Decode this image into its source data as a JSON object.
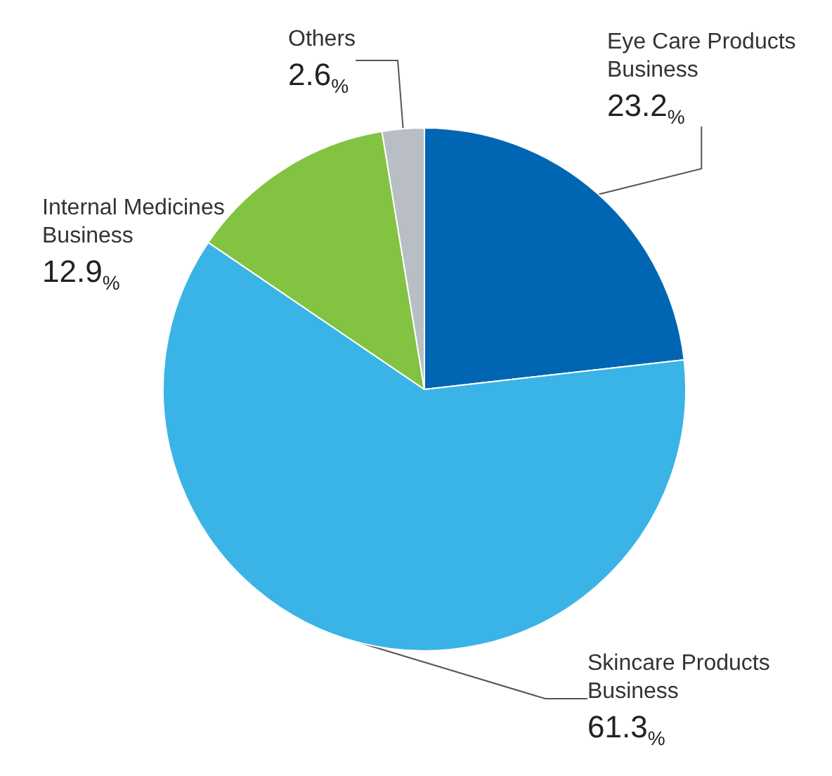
{
  "chart_data": {
    "type": "pie",
    "categories": [
      "Eye Care Products Business",
      "Skincare Products Business",
      "Internal Medicines Business",
      "Others"
    ],
    "values": [
      23.2,
      61.3,
      12.9,
      2.6
    ],
    "colors": [
      "#0066b3",
      "#3ab4e6",
      "#82c341",
      "#b8bec4"
    ],
    "value_labels": [
      "23.2%",
      "61.3%",
      "12.9%",
      "2.6%"
    ],
    "legend": false
  }
}
